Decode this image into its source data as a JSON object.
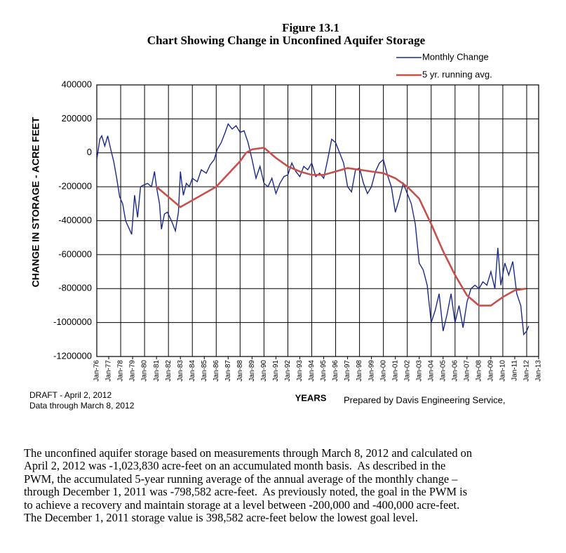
{
  "chart_data": {
    "type": "line",
    "title": "Figure 13.1",
    "subtitle": "Chart Showing Change in Unconfined Aquifer Storage",
    "x_label": "YEARS",
    "y_label": "CHANGE IN STORAGE - ACRE FEET",
    "legend": "upper right",
    "grid": true,
    "ylim": [
      -1200000,
      400000
    ],
    "yticks": [
      -1200000,
      -1000000,
      -800000,
      -600000,
      -400000,
      -200000,
      0,
      200000,
      400000
    ],
    "xlim": [
      "1976-01",
      "2013-01"
    ],
    "xticks": [
      {
        "value": "1976-01",
        "label": "Jan-76"
      },
      {
        "value": "1977-01",
        "label": "Jan-77"
      },
      {
        "value": "1978-01",
        "label": "Jan-78"
      },
      {
        "value": "1979-01",
        "label": "Jan-79"
      },
      {
        "value": "1980-01",
        "label": "Jan-80"
      },
      {
        "value": "1981-01",
        "label": "Jan-81"
      },
      {
        "value": "1982-01",
        "label": "Jan-82"
      },
      {
        "value": "1983-01",
        "label": "Jan-83"
      },
      {
        "value": "1984-01",
        "label": "Jan-84"
      },
      {
        "value": "1985-01",
        "label": "Jan-85"
      },
      {
        "value": "1986-01",
        "label": "Jan-86"
      },
      {
        "value": "1987-01",
        "label": "Jan-87"
      },
      {
        "value": "1988-01",
        "label": "Jan-88"
      },
      {
        "value": "1989-01",
        "label": "Jan-89"
      },
      {
        "value": "1990-01",
        "label": "Jan-90"
      },
      {
        "value": "1991-01",
        "label": "Jan-91"
      },
      {
        "value": "1992-01",
        "label": "Jan-92"
      },
      {
        "value": "1993-01",
        "label": "Jan-93"
      },
      {
        "value": "1994-01",
        "label": "Jan-94"
      },
      {
        "value": "1995-01",
        "label": "Jan-95"
      },
      {
        "value": "1996-01",
        "label": "Jan-96"
      },
      {
        "value": "1997-01",
        "label": "Jan-97"
      },
      {
        "value": "1998-01",
        "label": "Jan-98"
      },
      {
        "value": "1999-01",
        "label": "Jan-99"
      },
      {
        "value": "2000-01",
        "label": "Jan-00"
      },
      {
        "value": "2001-01",
        "label": "Jan-01"
      },
      {
        "value": "2002-01",
        "label": "Jan-02"
      },
      {
        "value": "2003-01",
        "label": "Jan-03"
      },
      {
        "value": "2004-01",
        "label": "Jan-04"
      },
      {
        "value": "2005-01",
        "label": "Jan-05"
      },
      {
        "value": "2006-01",
        "label": "Jan-06"
      },
      {
        "value": "2007-01",
        "label": "Jan-07"
      },
      {
        "value": "2008-01",
        "label": "Jan-08"
      },
      {
        "value": "2009-01",
        "label": "Jan-09"
      },
      {
        "value": "2010-01",
        "label": "Jan-10"
      },
      {
        "value": "2011-01",
        "label": "Jan-11"
      },
      {
        "value": "2012-01",
        "label": "Jan-12"
      },
      {
        "value": "2013-01",
        "label": "Jan-13"
      }
    ],
    "series": [
      {
        "name": "Monthly Change",
        "color": "#1c2a8c",
        "x": [
          "1976-01",
          "1976-04",
          "1976-06",
          "1976-09",
          "1976-12",
          "1977-03",
          "1977-06",
          "1977-09",
          "1977-12",
          "1978-03",
          "1978-06",
          "1978-09",
          "1978-12",
          "1979-03",
          "1979-06",
          "1979-09",
          "1979-12",
          "1980-04",
          "1980-08",
          "1980-11",
          "1981-01",
          "1981-04",
          "1981-06",
          "1981-09",
          "1981-12",
          "1982-04",
          "1982-08",
          "1982-11",
          "1983-01",
          "1983-04",
          "1983-07",
          "1983-10",
          "1984-01",
          "1984-06",
          "1984-10",
          "1985-03",
          "1985-07",
          "1985-11",
          "1986-02",
          "1986-06",
          "1986-10",
          "1987-01",
          "1987-05",
          "1987-09",
          "1988-01",
          "1988-05",
          "1988-09",
          "1989-01",
          "1989-05",
          "1989-09",
          "1990-01",
          "1990-05",
          "1990-09",
          "1991-01",
          "1991-05",
          "1991-09",
          "1992-01",
          "1992-05",
          "1992-09",
          "1993-01",
          "1993-05",
          "1993-09",
          "1994-01",
          "1994-05",
          "1994-09",
          "1995-01",
          "1995-05",
          "1995-09",
          "1996-01",
          "1996-05",
          "1996-09",
          "1997-01",
          "1997-05",
          "1997-09",
          "1998-01",
          "1998-05",
          "1998-09",
          "1999-01",
          "1999-05",
          "1999-09",
          "2000-01",
          "2000-05",
          "2000-09",
          "2001-01",
          "2001-05",
          "2001-09",
          "2002-01",
          "2002-05",
          "2002-09",
          "2003-01",
          "2003-05",
          "2003-09",
          "2004-01",
          "2004-05",
          "2004-09",
          "2005-01",
          "2005-05",
          "2005-09",
          "2006-01",
          "2006-05",
          "2006-09",
          "2007-01",
          "2007-05",
          "2007-09",
          "2008-01",
          "2008-05",
          "2008-09",
          "2009-01",
          "2009-05",
          "2009-08",
          "2009-11",
          "2010-03",
          "2010-07",
          "2010-11",
          "2011-03",
          "2011-07",
          "2011-10",
          "2012-01",
          "2012-03"
        ],
        "values": [
          -40000,
          80000,
          100000,
          40000,
          100000,
          20000,
          -50000,
          -150000,
          -260000,
          -300000,
          -400000,
          -440000,
          -480000,
          -250000,
          -380000,
          -200000,
          -190000,
          -180000,
          -200000,
          -110000,
          -200000,
          -300000,
          -450000,
          -360000,
          -350000,
          -400000,
          -460000,
          -350000,
          -110000,
          -250000,
          -180000,
          -200000,
          -150000,
          -170000,
          -100000,
          -120000,
          -70000,
          -40000,
          20000,
          60000,
          120000,
          170000,
          140000,
          160000,
          120000,
          130000,
          60000,
          -40000,
          -150000,
          -80000,
          -180000,
          -200000,
          -150000,
          -240000,
          -180000,
          -140000,
          -130000,
          -60000,
          -110000,
          -140000,
          -80000,
          -100000,
          -60000,
          -140000,
          -120000,
          -150000,
          -40000,
          80000,
          60000,
          0,
          -60000,
          -200000,
          -230000,
          -100000,
          -90000,
          -180000,
          -240000,
          -200000,
          -110000,
          -60000,
          -40000,
          -130000,
          -200000,
          -350000,
          -270000,
          -180000,
          -240000,
          -300000,
          -420000,
          -650000,
          -690000,
          -780000,
          -1000000,
          -930000,
          -830000,
          -1050000,
          -950000,
          -830000,
          -1000000,
          -900000,
          -1030000,
          -880000,
          -800000,
          -780000,
          -800000,
          -760000,
          -780000,
          -700000,
          -800000,
          -560000,
          -780000,
          -650000,
          -720000,
          -640000,
          -830000,
          -900000,
          -1070000,
          -1050000,
          -1020000
        ]
      },
      {
        "name": "5 yr. running avg.",
        "color": "#c9504a",
        "x": [
          "1981-01",
          "1983-01",
          "1986-01",
          "1988-01",
          "1988-07",
          "1989-01",
          "1990-01",
          "1991-01",
          "1992-01",
          "1993-01",
          "1994-01",
          "1995-01",
          "1996-01",
          "1997-01",
          "1998-01",
          "1999-01",
          "2000-01",
          "2001-01",
          "2002-01",
          "2003-01",
          "2004-01",
          "2005-01",
          "2006-01",
          "2007-01",
          "2008-01",
          "2009-01",
          "2010-01",
          "2011-01",
          "2011-12"
        ],
        "values": [
          -200000,
          -320000,
          -200000,
          -50000,
          0,
          20000,
          30000,
          -30000,
          -80000,
          -110000,
          -130000,
          -130000,
          -110000,
          -90000,
          -100000,
          -110000,
          -120000,
          -150000,
          -200000,
          -270000,
          -420000,
          -580000,
          -720000,
          -840000,
          -900000,
          -900000,
          -850000,
          -810000,
          -800000
        ]
      }
    ]
  },
  "notes": [
    "DRAFT - April 2, 2012",
    "Data through March 8, 2012"
  ],
  "credit": "Prepared by Davis Engineering Service,",
  "paragraph": [
    "The unconfined aquifer storage based on measurements through March 8, 2012 and calculated on",
    "April 2, 2012 was -1,023,830 acre-feet on an accumulated month basis.  As described in the",
    "PWM, the accumulated 5-year running average of the annual average of the monthly change –",
    "through December 1, 2011 was -798,582 acre-feet.  As previously noted, the goal in the PWM is",
    "to achieve a recovery and maintain storage at a level between -200,000 and -400,000 acre-feet.",
    "The December 1, 2011 storage value is 398,582 acre-feet below the lowest goal level."
  ]
}
